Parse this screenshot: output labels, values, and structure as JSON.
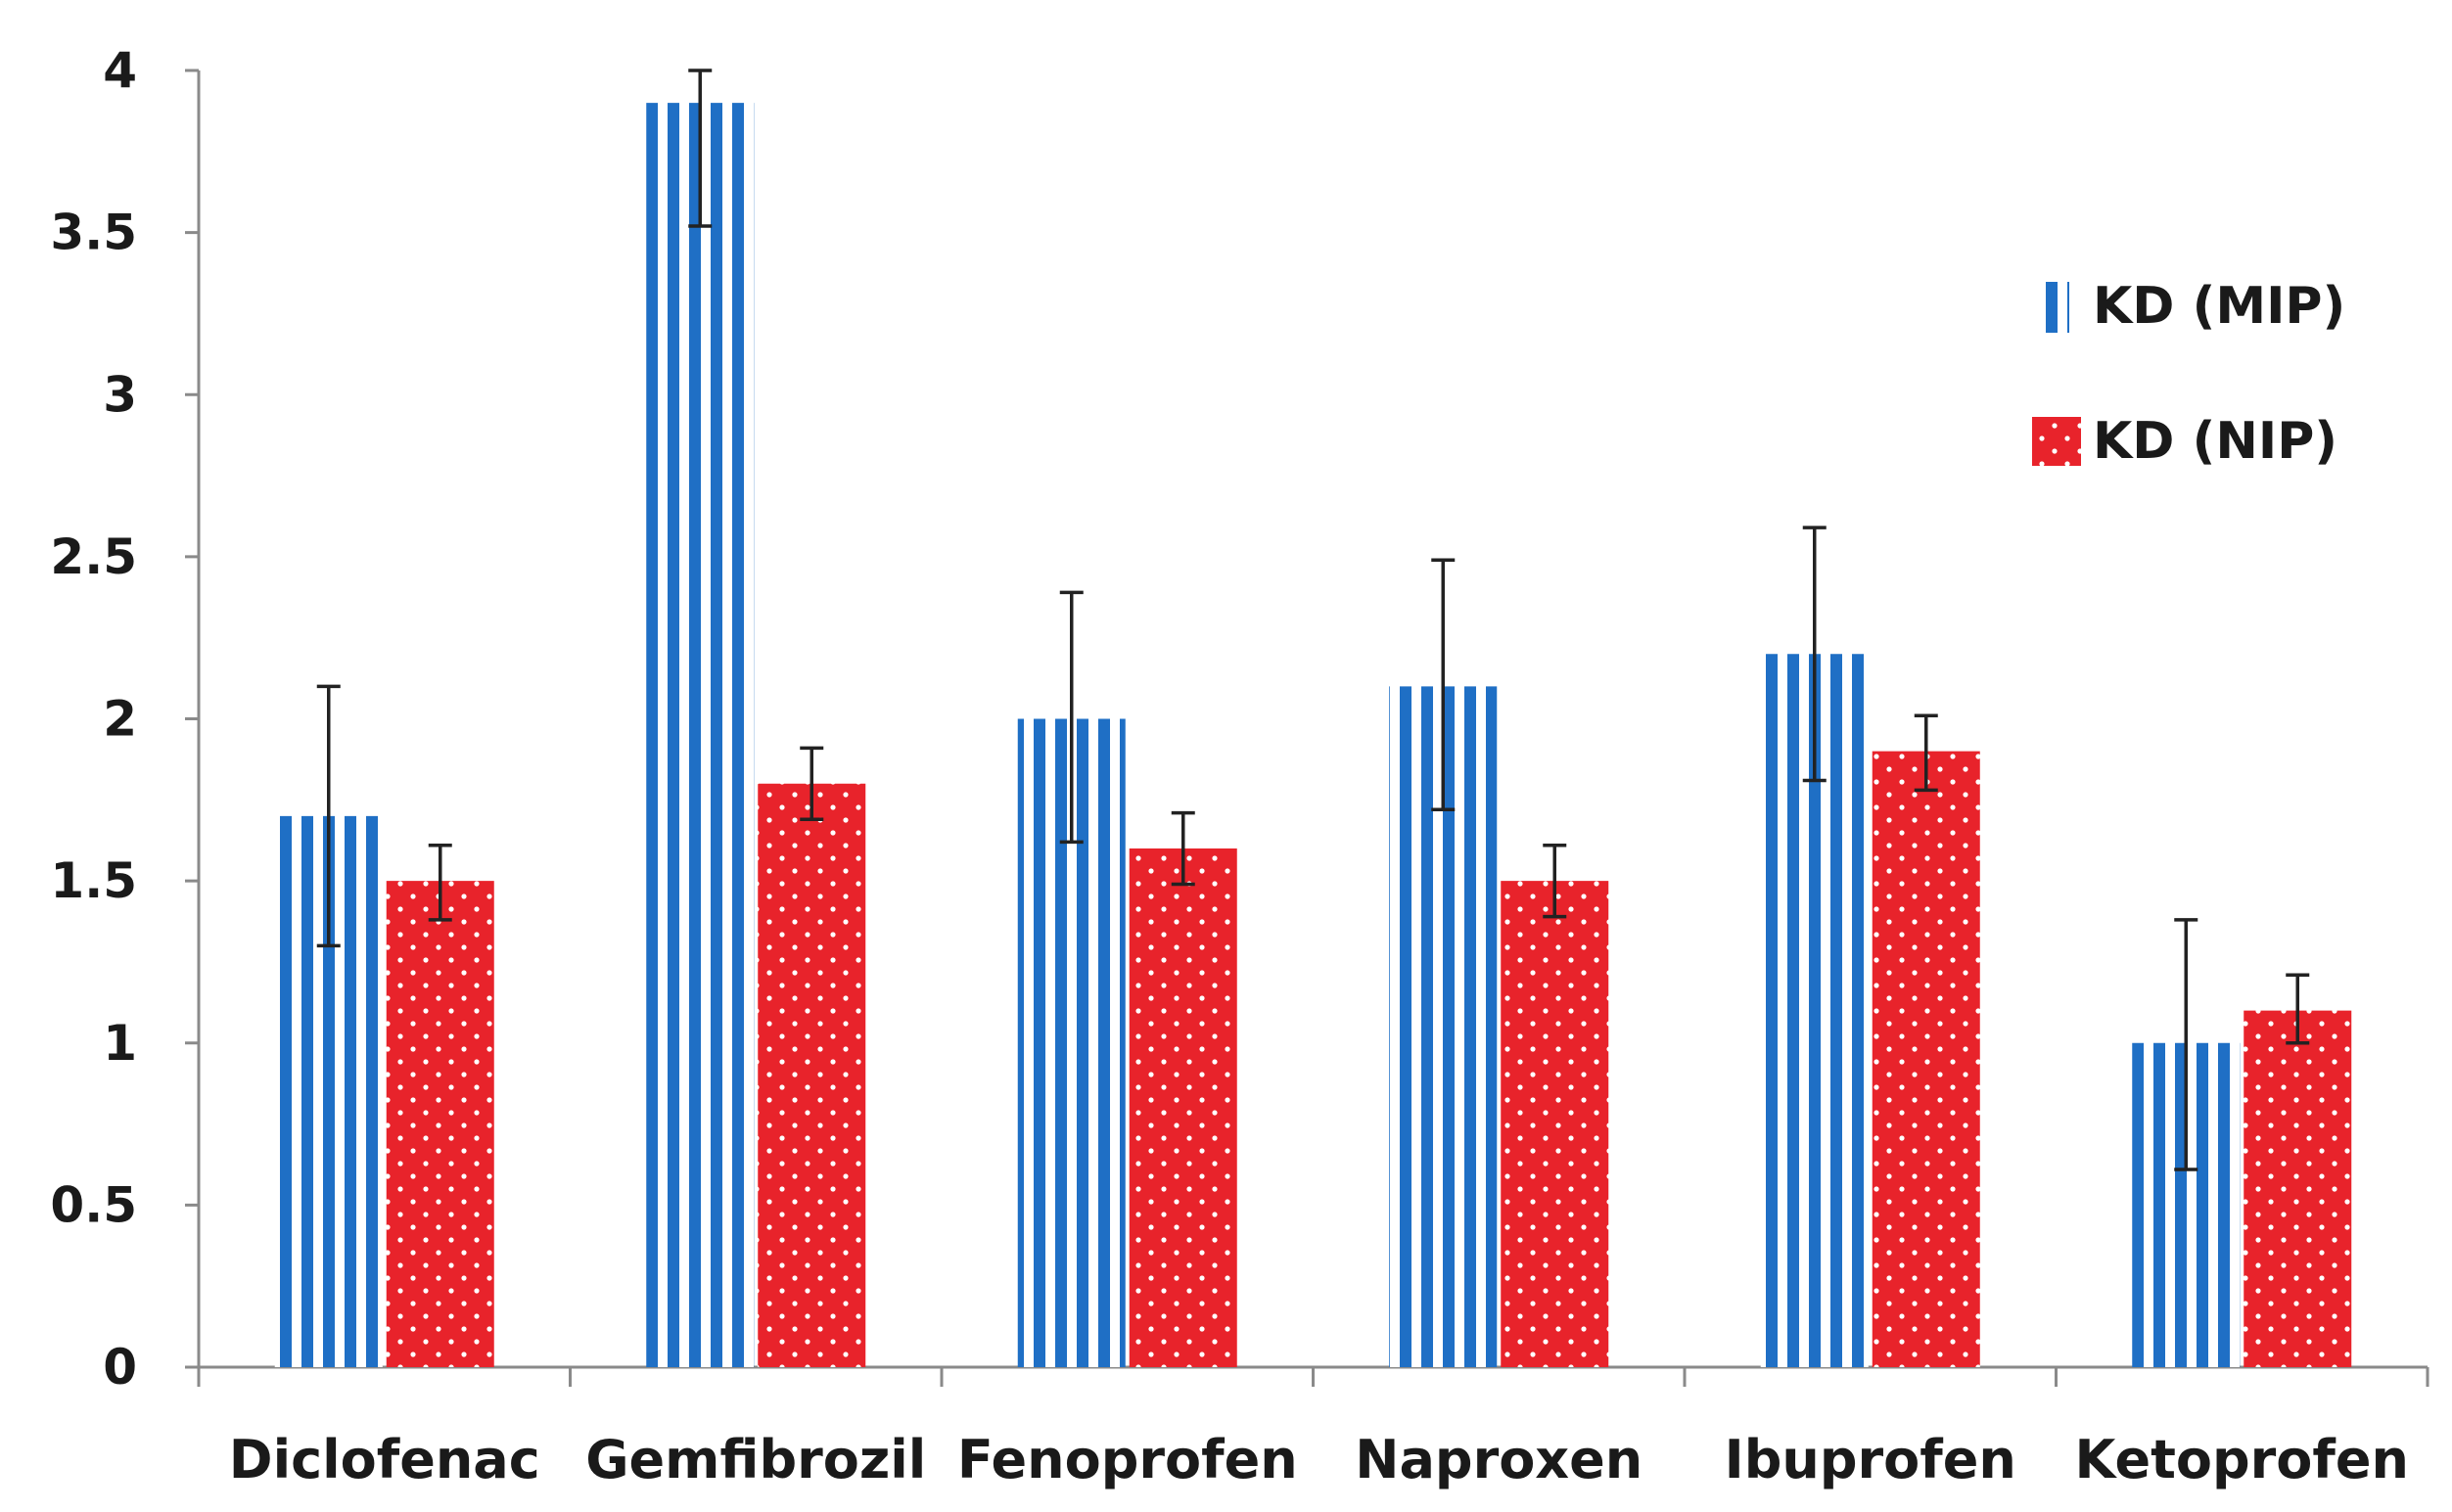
{
  "chart_data": {
    "type": "bar",
    "title": "",
    "xlabel": "",
    "ylabel": "",
    "ylim": [
      0,
      4
    ],
    "yticks": [
      "0",
      "0.5",
      "1",
      "1.5",
      "2",
      "2.5",
      "3",
      "3.5",
      "4"
    ],
    "categories": [
      "Diclofenac",
      "Gemfibrozil",
      "Fenoprofen",
      "Naproxen",
      "Ibuprofen",
      "Ketoprofen"
    ],
    "series": [
      {
        "name": "KD (MIP)",
        "color": "#1f6fc5",
        "pattern": "vertical-stripes",
        "values": [
          1.7,
          3.9,
          2.0,
          2.1,
          2.2,
          1.0
        ],
        "error_low": [
          1.3,
          3.52,
          1.62,
          1.72,
          1.81,
          0.61
        ],
        "error_high": [
          2.1,
          4.0,
          2.39,
          2.49,
          2.59,
          1.38
        ]
      },
      {
        "name": "KD (NIP)",
        "color": "#e8232b",
        "pattern": "white-dots",
        "values": [
          1.5,
          1.8,
          1.6,
          1.5,
          1.9,
          1.1
        ],
        "error_low": [
          1.38,
          1.69,
          1.49,
          1.39,
          1.78,
          1.0
        ],
        "error_high": [
          1.61,
          1.91,
          1.71,
          1.61,
          2.01,
          1.21
        ]
      }
    ],
    "legend_position": "top-right",
    "grid": false
  }
}
